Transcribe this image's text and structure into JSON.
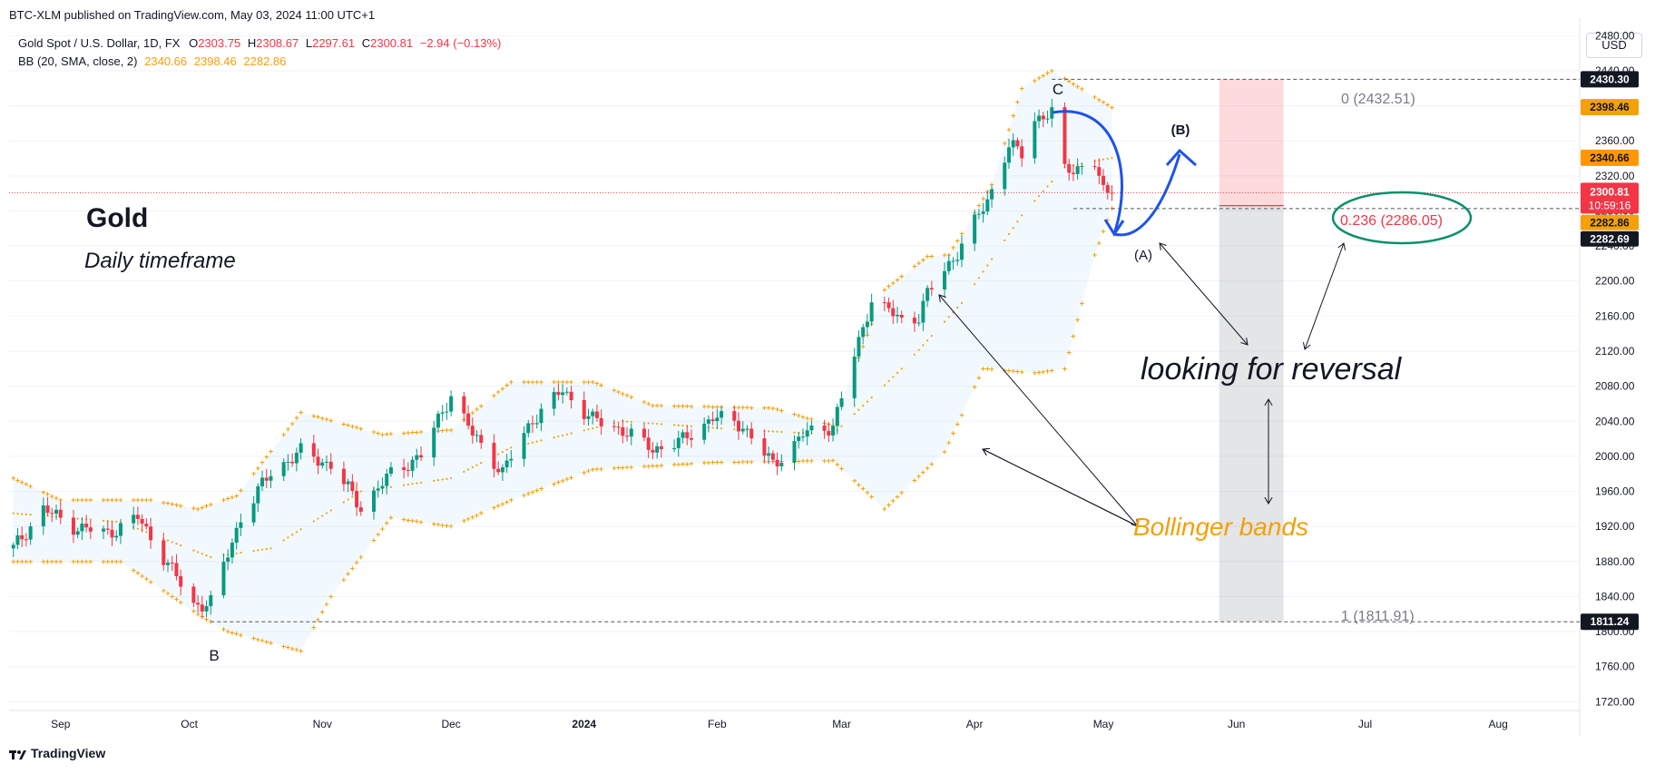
{
  "header": {
    "publisher": "BTC-XLM published on TradingView.com, May 03, 2024 11:00 UTC+1",
    "currency": "USD"
  },
  "legend": {
    "symbol": "Gold Spot / U.S. Dollar, 1D, FX",
    "o_label": "O",
    "o": "2303.75",
    "h_label": "H",
    "h": "2308.67",
    "l_label": "L",
    "l": "2297.61",
    "c_label": "C",
    "c": "2300.81",
    "change": "−2.94 (−0.13%)",
    "bb_label": "BB (20, SMA, close, 2)",
    "bb_basis": "2340.66",
    "bb_upper": "2398.46",
    "bb_lower": "2282.86"
  },
  "footer": {
    "brand": "TradingView"
  },
  "colors": {
    "up": "#089981",
    "down": "#f23645",
    "bands": "#f4a009",
    "annotation_blue": "#1e53e5",
    "annotation_green": "#0a8f6a"
  },
  "chart_data": {
    "type": "candlestick",
    "y_axis": {
      "ticks": [
        "2480.00",
        "2440.00",
        "2400.00",
        "2360.00",
        "2320.00",
        "2280.00",
        "2240.00",
        "2200.00",
        "2160.00",
        "2120.00",
        "2080.00",
        "2040.00",
        "2000.00",
        "1960.00",
        "1920.00",
        "1880.00",
        "1840.00",
        "1800.00",
        "1760.00",
        "1720.00"
      ],
      "range": [
        1710,
        2500
      ]
    },
    "x_axis": {
      "ticks": [
        "Sep",
        "Oct",
        "Nov",
        "Dec",
        "2024",
        "Feb",
        "Mar",
        "Apr",
        "May",
        "Jun",
        "Jul",
        "Aug"
      ],
      "range": [
        "2023-08-20",
        "2024-08-20"
      ]
    },
    "price_labels": {
      "last": "2300.81",
      "countdown": "10:59:16",
      "high_line": "2430.30",
      "bb_upper": "2398.46",
      "bb_basis": "2340.66",
      "bb_lower": "2282.86",
      "low_line": "2282.69",
      "fib_low_line": "1811.24"
    },
    "fib": {
      "level0": "0 (2432.51)",
      "level0236": "0.236 (2286.05)",
      "level1": "1 (1811.91)"
    },
    "annotations": {
      "title": "Gold",
      "subtitle": "Daily timeframe",
      "reversal": "looking for reversal",
      "bollinger": "Bollinger bands",
      "wave_c": "C",
      "wave_a": "(A)",
      "wave_b": "(B)",
      "wave_b_low": "B"
    },
    "close_anchors": [
      [
        "2023-08-21",
        1895
      ],
      [
        "2023-08-28",
        1940
      ],
      [
        "2023-09-04",
        1920
      ],
      [
        "2023-09-12",
        1912
      ],
      [
        "2023-09-19",
        1930
      ],
      [
        "2023-09-26",
        1878
      ],
      [
        "2023-10-02",
        1830
      ],
      [
        "2023-10-06",
        1833
      ],
      [
        "2023-10-13",
        1930
      ],
      [
        "2023-10-20",
        1982
      ],
      [
        "2023-10-27",
        2005
      ],
      [
        "2023-11-03",
        1990
      ],
      [
        "2023-11-10",
        1942
      ],
      [
        "2023-11-17",
        1980
      ],
      [
        "2023-11-24",
        2001
      ],
      [
        "2023-12-01",
        2071
      ],
      [
        "2023-12-06",
        2025
      ],
      [
        "2023-12-13",
        1982
      ],
      [
        "2023-12-20",
        2042
      ],
      [
        "2023-12-27",
        2075
      ],
      [
        "2024-01-03",
        2042
      ],
      [
        "2024-01-10",
        2030
      ],
      [
        "2024-01-17",
        2008
      ],
      [
        "2024-01-24",
        2018
      ],
      [
        "2024-01-31",
        2045
      ],
      [
        "2024-02-07",
        2035
      ],
      [
        "2024-02-14",
        1990
      ],
      [
        "2024-02-21",
        2025
      ],
      [
        "2024-02-28",
        2035
      ],
      [
        "2024-03-05",
        2130
      ],
      [
        "2024-03-08",
        2180
      ],
      [
        "2024-03-15",
        2155
      ],
      [
        "2024-03-19",
        2160
      ],
      [
        "2024-03-21",
        2185
      ],
      [
        "2024-03-28",
        2233
      ],
      [
        "2024-04-04",
        2292
      ],
      [
        "2024-04-09",
        2355
      ],
      [
        "2024-04-12",
        2345
      ],
      [
        "2024-04-15",
        2385
      ],
      [
        "2024-04-19",
        2392
      ],
      [
        "2024-04-22",
        2325
      ],
      [
        "2024-04-25",
        2330
      ],
      [
        "2024-04-29",
        2335
      ],
      [
        "2024-05-01",
        2300
      ],
      [
        "2024-05-03",
        2300.81
      ]
    ],
    "bb_upper_anchors": [
      [
        "2023-08-21",
        1975
      ],
      [
        "2023-09-01",
        1950
      ],
      [
        "2023-09-22",
        1950
      ],
      [
        "2023-10-03",
        1940
      ],
      [
        "2023-10-12",
        1955
      ],
      [
        "2023-10-27",
        2050
      ],
      [
        "2023-11-15",
        2025
      ],
      [
        "2023-12-01",
        2030
      ],
      [
        "2023-12-15",
        2085
      ],
      [
        "2024-01-03",
        2085
      ],
      [
        "2024-01-17",
        2058
      ],
      [
        "2024-02-14",
        2055
      ],
      [
        "2024-02-28",
        2035
      ],
      [
        "2024-03-11",
        2190
      ],
      [
        "2024-03-21",
        2228
      ],
      [
        "2024-03-26",
        2230
      ],
      [
        "2024-04-05",
        2310
      ],
      [
        "2024-04-12",
        2420
      ],
      [
        "2024-04-19",
        2440
      ],
      [
        "2024-05-03",
        2398
      ]
    ],
    "bb_basis_anchors": [
      [
        "2023-08-21",
        1935
      ],
      [
        "2023-09-15",
        1925
      ],
      [
        "2023-10-06",
        1885
      ],
      [
        "2023-10-20",
        1895
      ],
      [
        "2023-11-10",
        1960
      ],
      [
        "2023-12-01",
        1975
      ],
      [
        "2023-12-15",
        2010
      ],
      [
        "2024-01-10",
        2040
      ],
      [
        "2024-02-07",
        2030
      ],
      [
        "2024-02-28",
        2025
      ],
      [
        "2024-03-15",
        2100
      ],
      [
        "2024-03-29",
        2175
      ],
      [
        "2024-04-12",
        2275
      ],
      [
        "2024-04-22",
        2330
      ],
      [
        "2024-05-03",
        2340.66
      ]
    ],
    "bb_lower_anchors": [
      [
        "2023-08-21",
        1880
      ],
      [
        "2023-09-15",
        1880
      ],
      [
        "2023-10-03",
        1820
      ],
      [
        "2023-10-10",
        1800
      ],
      [
        "2023-10-27",
        1778
      ],
      [
        "2023-11-03",
        1840
      ],
      [
        "2023-11-17",
        1930
      ],
      [
        "2023-12-01",
        1920
      ],
      [
        "2023-12-15",
        1950
      ],
      [
        "2024-01-03",
        1985
      ],
      [
        "2024-01-31",
        1993
      ],
      [
        "2024-02-28",
        1995
      ],
      [
        "2024-03-11",
        1940
      ],
      [
        "2024-03-25",
        2005
      ],
      [
        "2024-04-03",
        2100
      ],
      [
        "2024-04-15",
        2095
      ],
      [
        "2024-04-22",
        2100
      ],
      [
        "2024-04-29",
        2230
      ],
      [
        "2024-05-03",
        2282.86
      ]
    ]
  }
}
